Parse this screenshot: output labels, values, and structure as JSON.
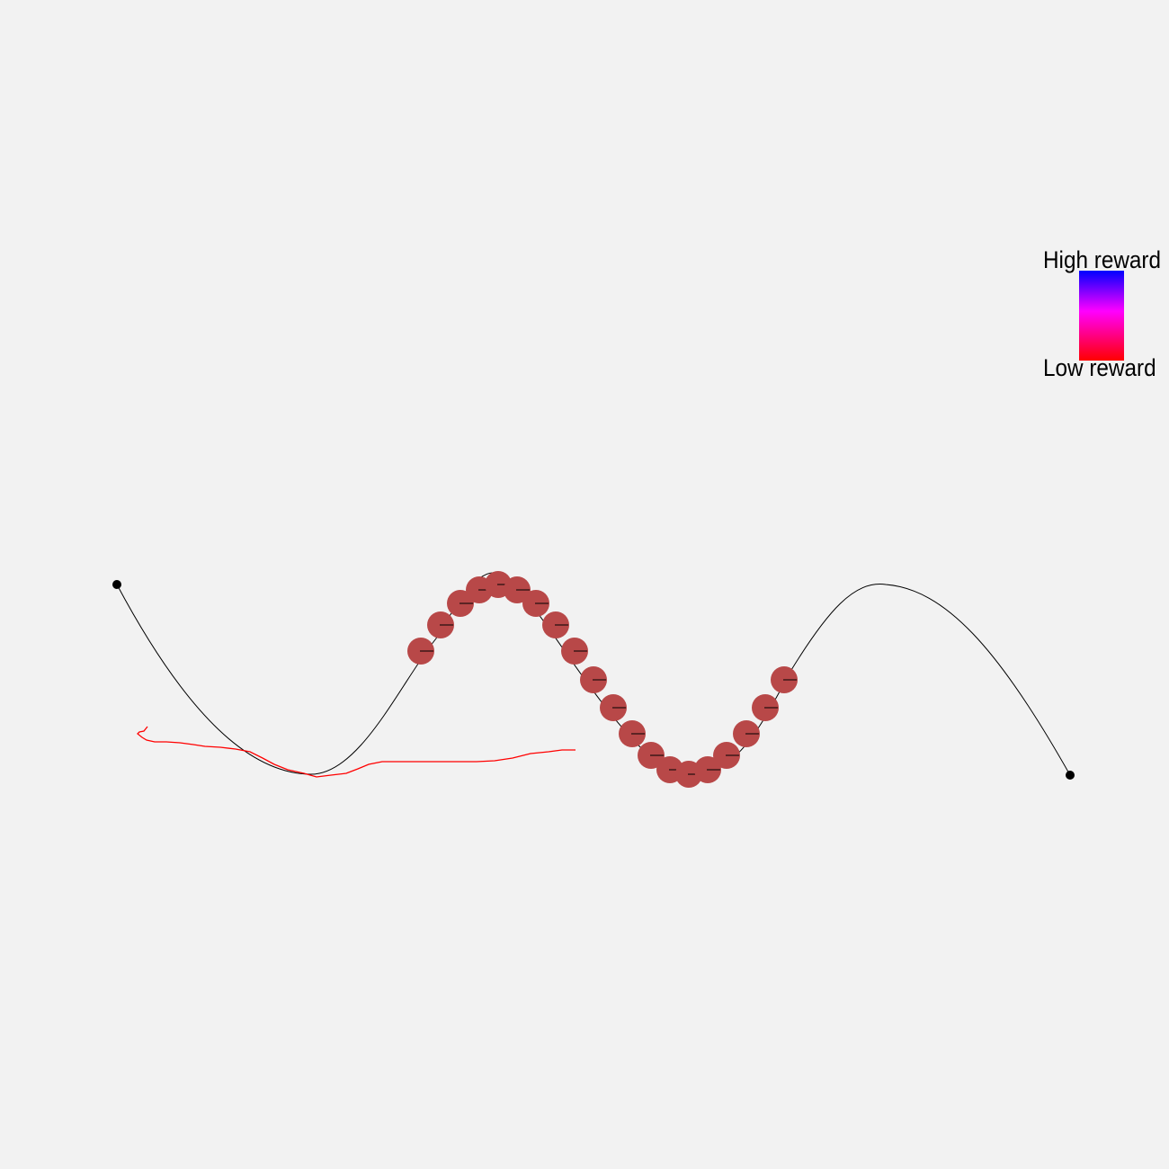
{
  "legend": {
    "high_label": "High reward",
    "low_label": "Low reward",
    "colors": {
      "high": "#0000ff",
      "mid": "#ff00ff",
      "low": "#ff0000"
    }
  },
  "colors": {
    "background": "#f2f2f2",
    "track": "#000000",
    "bead": "#b84848",
    "reward_trace": "#ff0000",
    "endpoint": "#000000"
  },
  "bead_count": 20
}
